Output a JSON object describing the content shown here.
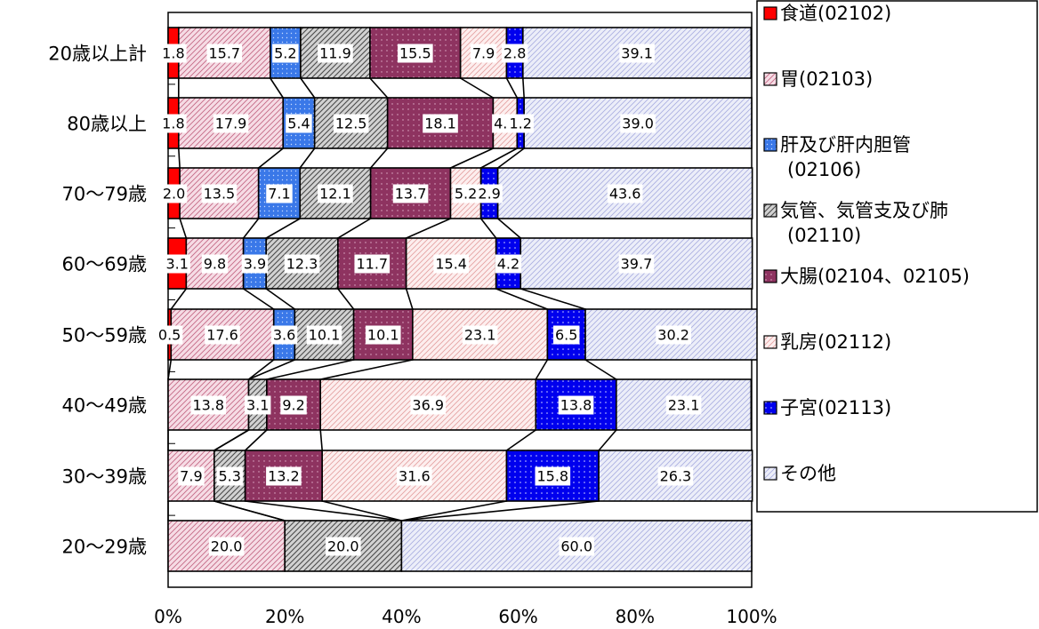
{
  "chart_data": {
    "type": "bar",
    "orientation": "horizontal",
    "stacked": true,
    "percent_stacked": true,
    "title": "",
    "xlabel": "",
    "ylabel": "",
    "xlim": [
      0,
      100
    ],
    "x_ticks": [
      "0%",
      "20%",
      "40%",
      "60%",
      "80%",
      "100%"
    ],
    "categories": [
      "20歳以上計",
      "80歳以上",
      "70～79歳",
      "60～69歳",
      "50～59歳",
      "40～49歳",
      "30～39歳",
      "20～29歳"
    ],
    "legend_position": "right",
    "series_lines": true,
    "series": [
      {
        "name": "食道(02102)",
        "legend_lines": [
          "食道(02102)"
        ],
        "color": "#ff0000",
        "pattern": "solid",
        "values": [
          1.8,
          1.8,
          2.0,
          3.1,
          0.5,
          0.0,
          0.0,
          0.0
        ]
      },
      {
        "name": "胃(02103)",
        "legend_lines": [
          "胃(02103)"
        ],
        "color": "#f4d6e0",
        "pattern": "hatch-pink",
        "values": [
          15.7,
          17.9,
          13.5,
          9.8,
          17.6,
          13.8,
          7.9,
          20.0
        ]
      },
      {
        "name": "肝及び肝内胆管(02106)",
        "legend_lines": [
          "肝及び肝内胆管",
          "(02106)"
        ],
        "color": "#3a78e8",
        "pattern": "dots-blue",
        "values": [
          5.2,
          5.4,
          7.1,
          3.9,
          3.6,
          0.0,
          0.0,
          0.0
        ]
      },
      {
        "name": "気管、気管支及び肺(02110)",
        "legend_lines": [
          "気管、気管支及び肺",
          "(02110)"
        ],
        "color": "#bdbdbd",
        "pattern": "hatch-gray",
        "values": [
          11.9,
          12.5,
          12.1,
          12.3,
          10.1,
          3.1,
          5.3,
          20.0
        ]
      },
      {
        "name": "大腸(02104、02105)",
        "legend_lines": [
          "大腸(02104、02105)"
        ],
        "color": "#993366",
        "pattern": "dots-plum",
        "values": [
          15.5,
          18.1,
          13.7,
          11.7,
          10.1,
          9.2,
          13.2,
          0.0
        ]
      },
      {
        "name": "乳房(02112)",
        "legend_lines": [
          "乳房(02112)"
        ],
        "color": "#fbe3e3",
        "pattern": "hatch-light",
        "values": [
          7.9,
          4.1,
          5.2,
          15.4,
          23.1,
          36.9,
          31.6,
          0.0
        ]
      },
      {
        "name": "子宮(02113)",
        "legend_lines": [
          "子宮(02113)"
        ],
        "color": "#0000ff",
        "pattern": "dots-navy",
        "values": [
          2.8,
          1.2,
          2.9,
          4.2,
          6.5,
          13.8,
          15.8,
          0.0
        ]
      },
      {
        "name": "その他",
        "legend_lines": [
          "その他"
        ],
        "color": "#e2e4f6",
        "pattern": "hatch-lav",
        "values": [
          39.1,
          39.0,
          43.6,
          39.7,
          30.2,
          23.1,
          26.3,
          60.0
        ]
      }
    ]
  }
}
